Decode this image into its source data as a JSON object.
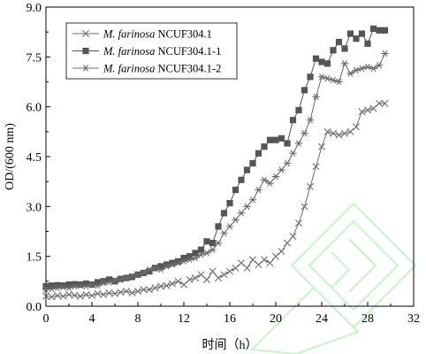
{
  "chart_data": {
    "type": "line",
    "xlabel": "时间（h）",
    "ylabel": "OD/(600 nm)",
    "xlim": [
      0,
      32
    ],
    "ylim": [
      0,
      9
    ],
    "xticks": [
      "0",
      "4",
      "8",
      "12",
      "16",
      "20",
      "24",
      "28",
      "32"
    ],
    "yticks": [
      "0.0",
      "1.5",
      "3.0",
      "4.5",
      "6.0",
      "7.5",
      "9.0"
    ],
    "legend_position": "top-left",
    "series": [
      {
        "name_italic": "M. farinosa",
        "name_rest": " NCUF304.1",
        "marker": "x",
        "color": "#707070",
        "x": [
          0,
          0.5,
          1,
          1.5,
          2,
          2.5,
          3,
          3.5,
          4,
          4.5,
          5,
          5.5,
          6,
          6.5,
          7,
          7.5,
          8,
          8.5,
          9,
          9.5,
          10,
          10.5,
          11,
          11.5,
          12,
          12.5,
          13,
          13.5,
          14,
          14.5,
          15,
          15.5,
          16,
          16.5,
          17,
          17.5,
          18,
          18.5,
          19,
          19.5,
          20,
          20.5,
          21,
          21.5,
          22,
          22.5,
          23,
          23.5,
          24,
          24.5,
          25,
          25.5,
          26,
          26.5,
          27,
          27.5,
          28,
          28.5,
          29,
          29.5
        ],
        "y": [
          0.3,
          0.28,
          0.32,
          0.3,
          0.35,
          0.33,
          0.3,
          0.35,
          0.32,
          0.38,
          0.35,
          0.4,
          0.38,
          0.42,
          0.45,
          0.4,
          0.45,
          0.5,
          0.5,
          0.55,
          0.6,
          0.62,
          0.68,
          0.75,
          0.65,
          0.8,
          0.85,
          0.95,
          0.8,
          1.05,
          0.85,
          0.95,
          1.05,
          1.15,
          1.3,
          1.15,
          1.4,
          1.25,
          1.4,
          1.3,
          1.5,
          1.65,
          1.9,
          2.1,
          2.5,
          3.0,
          3.6,
          4.2,
          4.8,
          5.25,
          5.2,
          5.15,
          5.2,
          5.25,
          5.4,
          5.85,
          5.9,
          5.95,
          6.1,
          6.1
        ]
      },
      {
        "name_italic": "M. farinosa",
        "name_rest": " NCUF304.1-1",
        "marker": "square",
        "color": "#555555",
        "x": [
          0,
          0.5,
          1,
          1.5,
          2,
          2.5,
          3,
          3.5,
          4,
          4.5,
          5,
          5.5,
          6,
          6.5,
          7,
          7.5,
          8,
          8.5,
          9,
          9.5,
          10,
          10.5,
          11,
          11.5,
          12,
          12.5,
          13,
          13.5,
          14,
          14.5,
          15,
          15.5,
          16,
          16.5,
          17,
          17.5,
          18,
          18.5,
          19,
          19.5,
          20,
          20.5,
          21,
          21.5,
          22,
          22.5,
          23,
          23.5,
          24,
          24.5,
          25,
          25.5,
          26,
          26.5,
          27,
          27.5,
          28,
          28.5,
          29,
          29.5
        ],
        "y": [
          0.6,
          0.62,
          0.63,
          0.62,
          0.65,
          0.66,
          0.65,
          0.68,
          0.65,
          0.72,
          0.75,
          0.8,
          0.75,
          0.82,
          0.85,
          0.88,
          0.95,
          1.0,
          1.05,
          1.15,
          1.2,
          1.25,
          1.3,
          1.35,
          1.45,
          1.5,
          1.6,
          1.7,
          1.95,
          1.9,
          2.4,
          2.8,
          3.1,
          3.5,
          3.8,
          4.1,
          4.3,
          4.6,
          4.8,
          5.0,
          5.0,
          5.05,
          4.9,
          5.6,
          5.9,
          6.5,
          6.9,
          7.45,
          7.35,
          7.3,
          7.7,
          7.95,
          7.75,
          8.2,
          8.05,
          8.2,
          7.9,
          8.35,
          8.3,
          8.3
        ]
      },
      {
        "name_italic": "M. farinosa",
        "name_rest": " NCUF304.1-2",
        "marker": "asterisk",
        "color": "#6a6a6a",
        "x": [
          0,
          0.5,
          1,
          1.5,
          2,
          2.5,
          3,
          3.5,
          4,
          4.5,
          5,
          5.5,
          6,
          6.5,
          7,
          7.5,
          8,
          8.5,
          9,
          9.5,
          10,
          10.5,
          11,
          11.5,
          12,
          12.5,
          13,
          13.5,
          14,
          14.5,
          15,
          15.5,
          16,
          16.5,
          17,
          17.5,
          18,
          18.5,
          19,
          19.5,
          20,
          20.5,
          21,
          21.5,
          22,
          22.5,
          23,
          23.5,
          24,
          24.5,
          25,
          25.5,
          26,
          26.5,
          27,
          27.5,
          28,
          28.5,
          29,
          29.5
        ],
        "y": [
          0.5,
          0.52,
          0.55,
          0.58,
          0.55,
          0.6,
          0.62,
          0.6,
          0.65,
          0.62,
          0.7,
          0.72,
          0.78,
          0.8,
          0.85,
          0.9,
          0.95,
          1.0,
          1.1,
          1.15,
          1.1,
          1.2,
          1.25,
          1.3,
          1.35,
          1.4,
          1.45,
          1.55,
          1.6,
          1.7,
          1.9,
          2.2,
          2.4,
          2.6,
          2.8,
          3.0,
          3.2,
          3.5,
          3.8,
          3.7,
          3.9,
          4.1,
          4.3,
          4.6,
          4.9,
          5.2,
          5.6,
          6.3,
          6.9,
          6.85,
          6.8,
          6.75,
          7.3,
          7.0,
          7.1,
          7.15,
          7.2,
          7.15,
          7.25,
          7.6
        ]
      }
    ]
  }
}
